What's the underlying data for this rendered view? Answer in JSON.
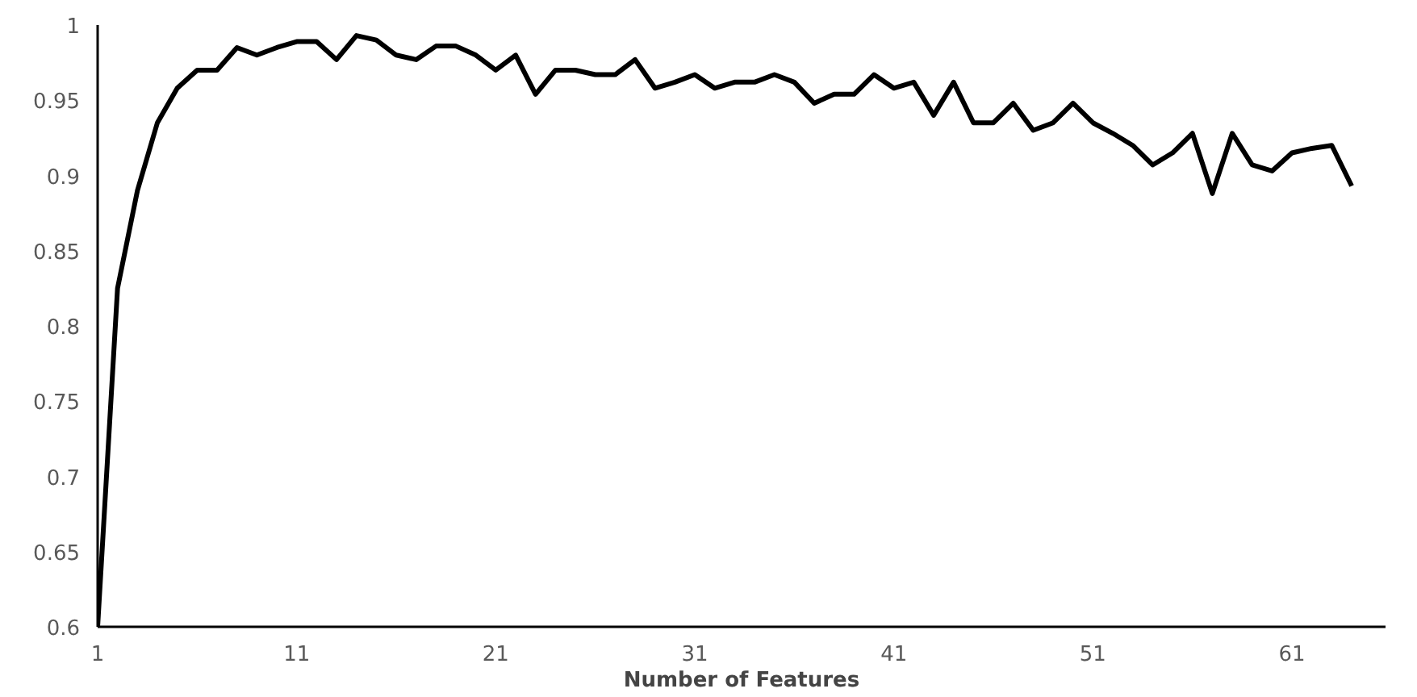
{
  "chart_data": {
    "type": "line",
    "xlabel": "Number of Features",
    "x": [
      1,
      2,
      3,
      4,
      5,
      6,
      7,
      8,
      9,
      10,
      11,
      12,
      13,
      14,
      15,
      16,
      17,
      18,
      19,
      20,
      21,
      22,
      23,
      24,
      25,
      26,
      27,
      28,
      29,
      30,
      31,
      32,
      33,
      34,
      35,
      36,
      37,
      38,
      39,
      40,
      41,
      42,
      43,
      44,
      45,
      46,
      47,
      48,
      49,
      50,
      51,
      52,
      53,
      54,
      55,
      56,
      57,
      58,
      59,
      60,
      61,
      62,
      63,
      64
    ],
    "series": [
      {
        "color": "#000000",
        "values": [
          0.6,
          0.825,
          0.89,
          0.935,
          0.958,
          0.97,
          0.97,
          0.985,
          0.98,
          0.985,
          0.989,
          0.989,
          0.977,
          0.993,
          0.99,
          0.98,
          0.977,
          0.986,
          0.986,
          0.98,
          0.97,
          0.98,
          0.954,
          0.97,
          0.97,
          0.967,
          0.967,
          0.977,
          0.958,
          0.962,
          0.967,
          0.958,
          0.962,
          0.962,
          0.967,
          0.962,
          0.948,
          0.954,
          0.954,
          0.967,
          0.958,
          0.962,
          0.94,
          0.962,
          0.935,
          0.935,
          0.948,
          0.93,
          0.935,
          0.948,
          0.935,
          0.928,
          0.92,
          0.907,
          0.915,
          0.928,
          0.888,
          0.928,
          0.907,
          0.903,
          0.915,
          0.918,
          0.92,
          0.893
        ]
      }
    ],
    "xlim": [
      1,
      65.7
    ],
    "ylim": [
      0.6,
      1
    ],
    "xticks": [
      1,
      11,
      21,
      31,
      41,
      51,
      61
    ],
    "yticks": [
      0.6,
      0.65,
      0.7,
      0.75,
      0.8,
      0.85,
      0.9,
      0.95,
      1
    ],
    "grid": false,
    "marker": "none",
    "line_style": "solid"
  }
}
